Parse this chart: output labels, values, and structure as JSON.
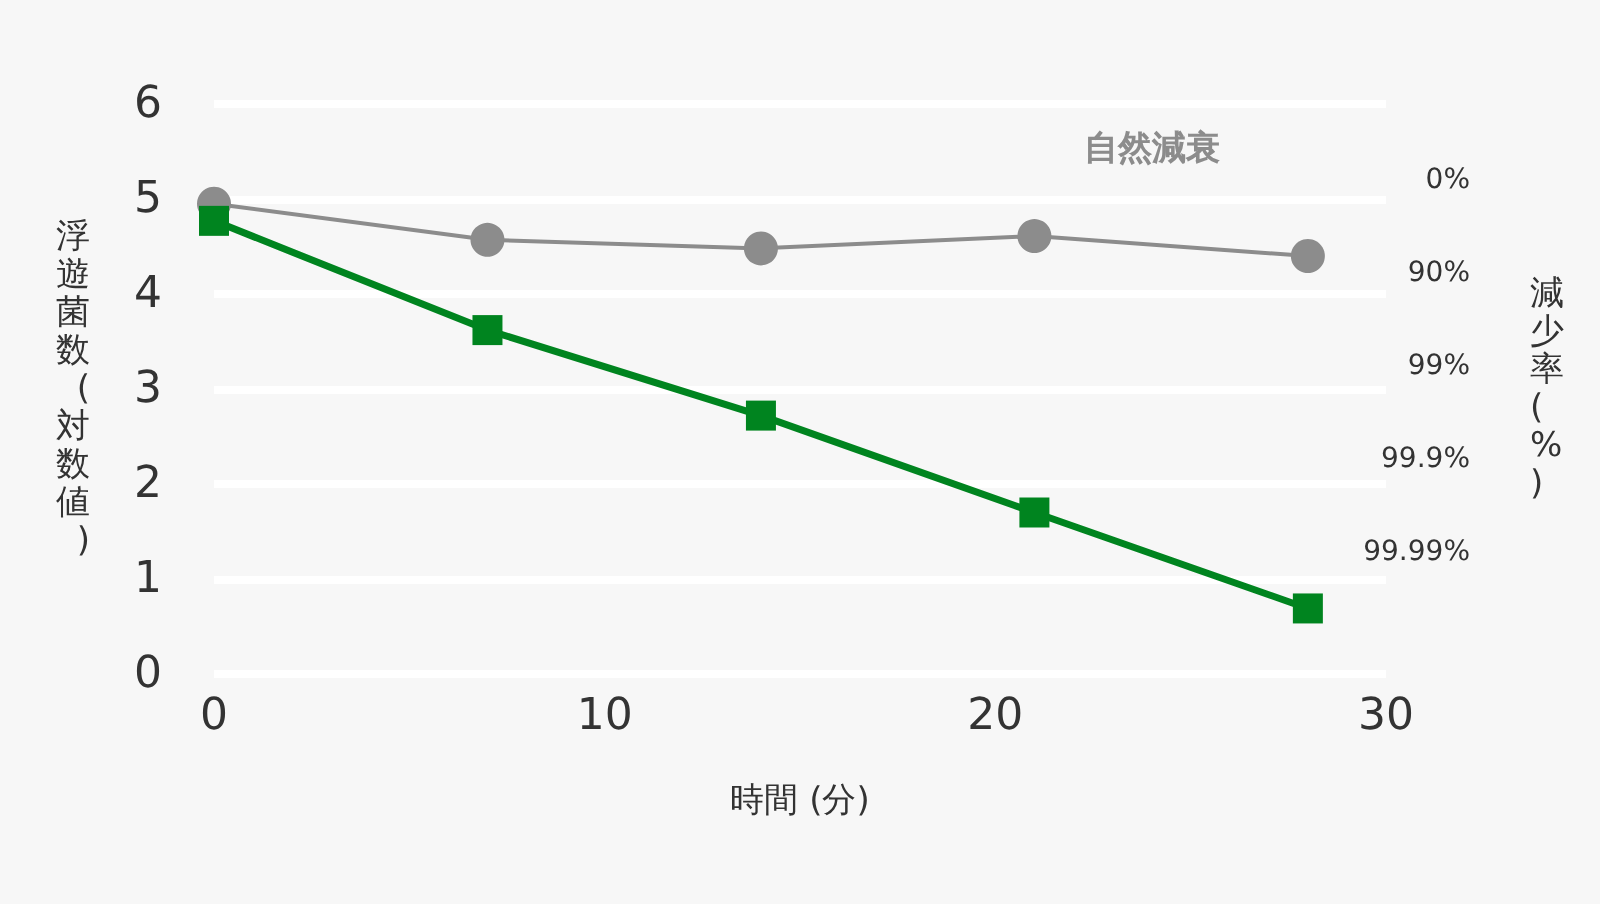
{
  "chart_data": {
    "type": "line",
    "xlabel": "時間 (分)",
    "ylabel": "浮遊菌数(対数値)",
    "y2label": "減少率(%)",
    "x": [
      0,
      7,
      14,
      21,
      28
    ],
    "series": [
      {
        "name": "自然減衰",
        "color": "#8c8c8c",
        "marker": "circle",
        "values": [
          4.95,
          4.57,
          4.48,
          4.61,
          4.4
        ]
      },
      {
        "color": "#00841f",
        "marker": "square",
        "values": [
          4.77,
          3.62,
          2.72,
          1.7,
          0.69
        ]
      }
    ],
    "xlim": [
      0,
      30
    ],
    "xticks": [
      0,
      10,
      20,
      30
    ],
    "ylim": [
      0,
      6
    ],
    "yticks": [
      0,
      1,
      2,
      3,
      4,
      5,
      6
    ],
    "annotations": [
      "0%",
      "90%",
      "99%",
      "99.9%",
      "99.99%"
    ],
    "grid": "y",
    "legend": false,
    "line_style": "solid"
  }
}
